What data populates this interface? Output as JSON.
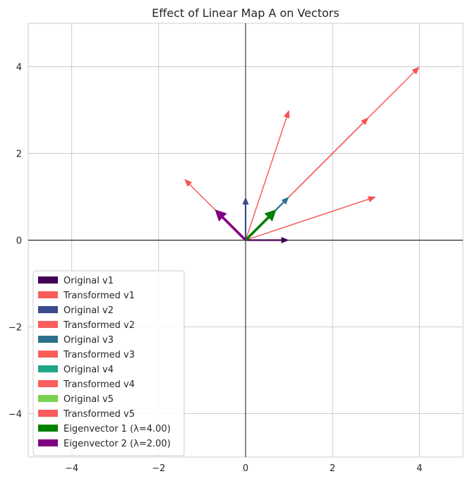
{
  "chart_data": {
    "type": "quiver",
    "title": "Effect of Linear Map A on Vectors",
    "xlabel": "",
    "ylabel": "",
    "xlim": [
      -5,
      5
    ],
    "ylim": [
      -5,
      5
    ],
    "xticks": [
      -4,
      -2,
      0,
      2,
      4
    ],
    "yticks": [
      -4,
      -2,
      0,
      2,
      4
    ],
    "xtick_labels": [
      "−4",
      "−2",
      "0",
      "2",
      "4"
    ],
    "ytick_labels": [
      "−4",
      "−2",
      "0",
      "2",
      "4"
    ],
    "grid": true,
    "legend_position": "lower-left",
    "vectors": [
      {
        "name": "Transformed v1",
        "x": 3.0,
        "y": 1.0,
        "color": "#f74a4a",
        "kind": "transformed"
      },
      {
        "name": "Transformed v2",
        "x": 1.0,
        "y": 3.0,
        "color": "#f74a4a",
        "kind": "transformed"
      },
      {
        "name": "Transformed v3",
        "x": 4.0,
        "y": 4.0,
        "color": "#f74a4a",
        "kind": "transformed"
      },
      {
        "name": "Transformed v4",
        "x": 2.83,
        "y": 2.83,
        "color": "#f74a4a",
        "kind": "transformed"
      },
      {
        "name": "Transformed v5",
        "x": -1.41,
        "y": 1.41,
        "color": "#f74a4a",
        "kind": "transformed"
      },
      {
        "name": "Original v1",
        "x": 1.0,
        "y": 0.0,
        "color": "#440154",
        "kind": "original"
      },
      {
        "name": "Original v2",
        "x": 0.0,
        "y": 1.0,
        "color": "#3b4a8b",
        "kind": "original"
      },
      {
        "name": "Original v3",
        "x": 1.0,
        "y": 1.0,
        "color": "#2c728e",
        "kind": "original"
      },
      {
        "name": "Original v4",
        "x": 0.707,
        "y": 0.707,
        "color": "#21a784",
        "kind": "original"
      },
      {
        "name": "Original v5",
        "x": -0.707,
        "y": 0.707,
        "color": "#7ad151",
        "kind": "original"
      },
      {
        "name": "Eigenvector 1 (λ=4.00)",
        "x": 0.707,
        "y": 0.707,
        "color": "#008000",
        "kind": "eigen"
      },
      {
        "name": "Eigenvector 2 (λ=2.00)",
        "x": -0.707,
        "y": 0.707,
        "color": "#800080",
        "kind": "eigen"
      }
    ],
    "legend": [
      {
        "label": "Original v1",
        "color": "#440154"
      },
      {
        "label": "Transformed v1",
        "color": "#fb5c5c"
      },
      {
        "label": "Original v2",
        "color": "#3b4a8b"
      },
      {
        "label": "Transformed v2",
        "color": "#fb5c5c"
      },
      {
        "label": "Original v3",
        "color": "#2c728e"
      },
      {
        "label": "Transformed v3",
        "color": "#fb5c5c"
      },
      {
        "label": "Original v4",
        "color": "#21a784"
      },
      {
        "label": "Transformed v4",
        "color": "#fb5c5c"
      },
      {
        "label": "Original v5",
        "color": "#7ad151"
      },
      {
        "label": "Transformed v5",
        "color": "#fb5c5c"
      },
      {
        "label": "Eigenvector 1 (λ=4.00)",
        "color": "#008000"
      },
      {
        "label": "Eigenvector 2 (λ=2.00)",
        "color": "#800080"
      }
    ]
  }
}
